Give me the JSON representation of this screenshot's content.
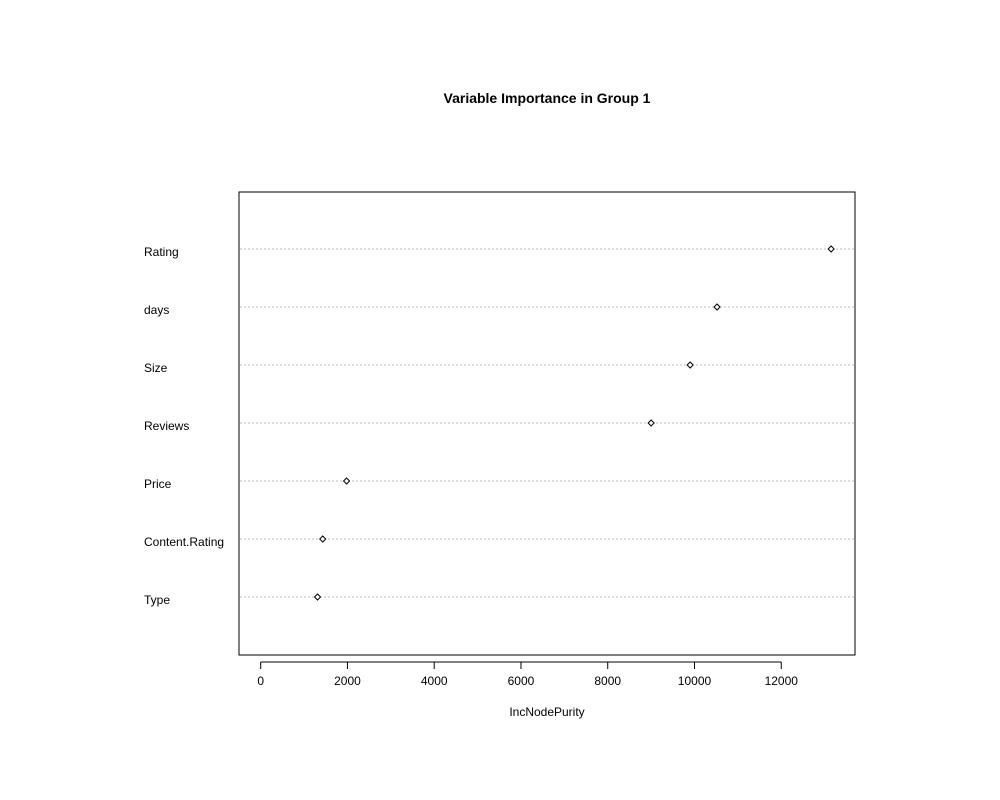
{
  "chart_data": {
    "type": "scatter",
    "title": "Variable Importance in Group 1",
    "xlabel": "IncNodePurity",
    "ylabel": "",
    "categories": [
      "Rating",
      "days",
      "Size",
      "Reviews",
      "Price",
      "Content.Rating",
      "Type"
    ],
    "values": [
      13150,
      10520,
      9900,
      9000,
      1980,
      1430,
      1310
    ],
    "xlim": [
      -500,
      13700
    ],
    "xticks": [
      0,
      2000,
      4000,
      6000,
      8000,
      10000,
      12000
    ],
    "xtick_labels": [
      "0",
      "2000",
      "4000",
      "6000",
      "8000",
      "10000",
      "12000"
    ],
    "grid": "dotted horizontal lines per category",
    "marker": "open diamond"
  }
}
